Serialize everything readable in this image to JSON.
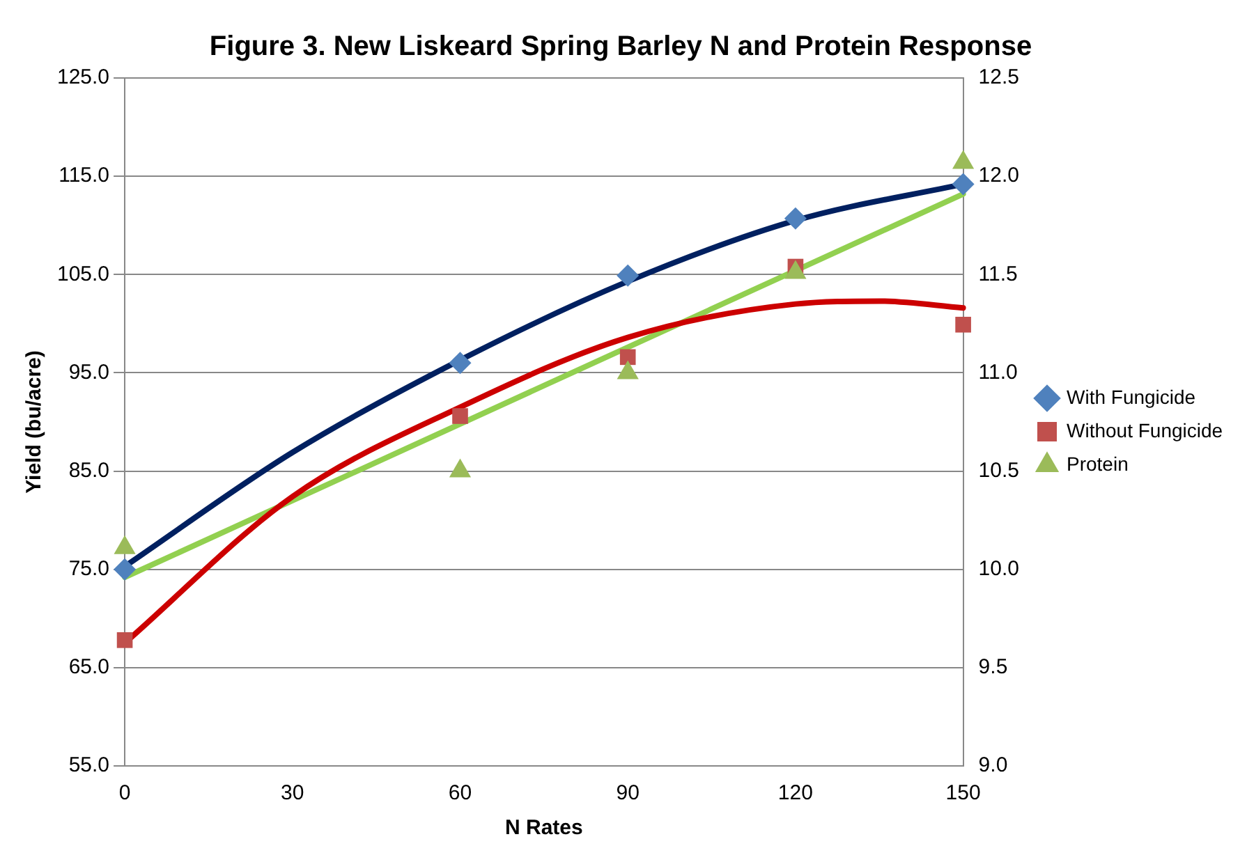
{
  "chart_data": {
    "type": "scatter",
    "title": "Figure 3. New Liskeard Spring Barley N and Protein Response",
    "xlabel": "N Rates",
    "ylabel": "Yield (bu/acre)",
    "xlim": [
      0,
      150
    ],
    "xticks": [
      0,
      30,
      60,
      90,
      120,
      150
    ],
    "ylim": [
      55,
      125
    ],
    "yticks": [
      {
        "value": 55,
        "label": "55.0"
      },
      {
        "value": 65,
        "label": "65.0"
      },
      {
        "value": 75,
        "label": "75.0"
      },
      {
        "value": 85,
        "label": "85.0"
      },
      {
        "value": 95,
        "label": "95.0"
      },
      {
        "value": 105,
        "label": "105.0"
      },
      {
        "value": 115,
        "label": "115.0"
      },
      {
        "value": 125,
        "label": "125.0"
      }
    ],
    "y2lim": [
      9,
      12.5
    ],
    "y2ticks": [
      {
        "value": 9,
        "label": "9.0"
      },
      {
        "value": 9.5,
        "label": "9.5"
      },
      {
        "value": 10,
        "label": "10.0"
      },
      {
        "value": 10.5,
        "label": "10.5"
      },
      {
        "value": 11,
        "label": "11.0"
      },
      {
        "value": 11.5,
        "label": "11.5"
      },
      {
        "value": 12,
        "label": "12.0"
      },
      {
        "value": 12.5,
        "label": "12.5"
      }
    ],
    "grid": "y",
    "legend": "right",
    "series": [
      {
        "type": "line",
        "color": "#002060",
        "marker": "none",
        "x": [
          0,
          30,
          60,
          90,
          120,
          150
        ],
        "values": [
          75.3,
          86.9,
          96.3,
          104.3,
          110.5,
          114.2
        ]
      },
      {
        "type": "line",
        "color": "#cc0000",
        "marker": "none",
        "x": [
          0,
          30,
          60,
          90,
          120,
          135,
          150
        ],
        "values": [
          67.5,
          82.4,
          91.5,
          98.6,
          102.0,
          102.3,
          101.6
        ]
      },
      {
        "type": "line",
        "color": "#92d050",
        "marker": "none",
        "axis": "y2",
        "x": [
          0,
          150
        ],
        "values": [
          9.96,
          11.91
        ]
      },
      {
        "name": "With Fungicide",
        "color": "#4f81bd",
        "marker": "diamond",
        "x": [
          0,
          60,
          90,
          120,
          150
        ],
        "values": [
          75.0,
          96.0,
          104.9,
          110.7,
          114.2
        ]
      },
      {
        "name": "Without Fungicide",
        "color": "#c0504d",
        "marker": "square",
        "x": [
          0,
          60,
          90,
          120,
          150
        ],
        "values": [
          67.8,
          90.6,
          96.6,
          105.8,
          99.9
        ]
      },
      {
        "name": "Protein",
        "color": "#9bbb59",
        "marker": "triangle",
        "axis": "y2",
        "x": [
          0,
          60,
          90,
          120,
          150
        ],
        "values": [
          10.11,
          10.5,
          11.0,
          11.51,
          12.07
        ]
      }
    ]
  }
}
